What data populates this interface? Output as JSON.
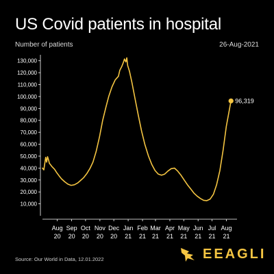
{
  "header": {
    "title": "US Covid patients in hospital",
    "subtitle": "Number of patients",
    "date": "26-Aug-2021"
  },
  "footer": {
    "source": "Source: Our World in Data, 12.01.2022",
    "brand": "EEAGLI"
  },
  "colors": {
    "background": "#000000",
    "line": "#f5c542",
    "text": "#ffffff",
    "brand": "#f5c542"
  },
  "chart_data": {
    "type": "line",
    "title": "US Covid patients in hospital",
    "ylabel": "Number of patients",
    "xlabel": "",
    "ylim": [
      0,
      135000
    ],
    "grid": false,
    "legend": "none",
    "y_ticks": [
      "10,000",
      "20,000",
      "30,000",
      "40,000",
      "50,000",
      "60,000",
      "70,000",
      "80,000",
      "90,000",
      "100,000",
      "110,000",
      "120,000",
      "130,000"
    ],
    "x_ticks": [
      {
        "month": "Aug",
        "year": "20",
        "date": "2020-08-01"
      },
      {
        "month": "Sep",
        "year": "20",
        "date": "2020-09-01"
      },
      {
        "month": "Oct",
        "year": "20",
        "date": "2020-10-01"
      },
      {
        "month": "Nov",
        "year": "20",
        "date": "2020-11-01"
      },
      {
        "month": "Dec",
        "year": "20",
        "date": "2020-12-01"
      },
      {
        "month": "Jan",
        "year": "21",
        "date": "2021-01-01"
      },
      {
        "month": "Feb",
        "year": "21",
        "date": "2021-02-01"
      },
      {
        "month": "Mar",
        "year": "21",
        "date": "2021-03-01"
      },
      {
        "month": "Apr",
        "year": "21",
        "date": "2021-04-01"
      },
      {
        "month": "May",
        "year": "21",
        "date": "2021-05-01"
      },
      {
        "month": "Jun",
        "year": "21",
        "date": "2021-06-01"
      },
      {
        "month": "Jul",
        "year": "21",
        "date": "2021-07-01"
      },
      {
        "month": "Aug",
        "year": "21",
        "date": "2021-08-01"
      }
    ],
    "series": [
      {
        "points": [
          [
            "2020-07-15",
            40000
          ],
          [
            "2020-07-18",
            38500
          ],
          [
            "2020-07-20",
            44000
          ],
          [
            "2020-07-22",
            49000
          ],
          [
            "2020-07-24",
            45000
          ],
          [
            "2020-07-26",
            49500
          ],
          [
            "2020-07-28",
            47000
          ],
          [
            "2020-07-30",
            44000
          ],
          [
            "2020-08-05",
            41000
          ],
          [
            "2020-08-10",
            39000
          ],
          [
            "2020-08-15",
            36000
          ],
          [
            "2020-08-20",
            33500
          ],
          [
            "2020-08-25",
            31000
          ],
          [
            "2020-09-01",
            28500
          ],
          [
            "2020-09-08",
            26500
          ],
          [
            "2020-09-15",
            25500
          ],
          [
            "2020-09-22",
            26000
          ],
          [
            "2020-09-29",
            27500
          ],
          [
            "2020-10-05",
            29500
          ],
          [
            "2020-10-12",
            32000
          ],
          [
            "2020-10-19",
            35500
          ],
          [
            "2020-10-26",
            40000
          ],
          [
            "2020-11-01",
            45000
          ],
          [
            "2020-11-08",
            54000
          ],
          [
            "2020-11-15",
            66000
          ],
          [
            "2020-11-22",
            80000
          ],
          [
            "2020-11-29",
            91000
          ],
          [
            "2020-12-05",
            100000
          ],
          [
            "2020-12-12",
            108000
          ],
          [
            "2020-12-19",
            114000
          ],
          [
            "2020-12-26",
            117000
          ],
          [
            "2020-12-29",
            122000
          ],
          [
            "2021-01-02",
            125000
          ],
          [
            "2021-01-05",
            128000
          ],
          [
            "2021-01-08",
            131500
          ],
          [
            "2021-01-11",
            129000
          ],
          [
            "2021-01-13",
            132500
          ],
          [
            "2021-01-15",
            126000
          ],
          [
            "2021-01-19",
            121000
          ],
          [
            "2021-01-24",
            112000
          ],
          [
            "2021-01-31",
            98000
          ],
          [
            "2021-02-07",
            84000
          ],
          [
            "2021-02-14",
            71000
          ],
          [
            "2021-02-21",
            60000
          ],
          [
            "2021-03-01",
            50000
          ],
          [
            "2021-03-08",
            43000
          ],
          [
            "2021-03-15",
            38000
          ],
          [
            "2021-03-22",
            35000
          ],
          [
            "2021-03-29",
            34000
          ],
          [
            "2021-04-05",
            35000
          ],
          [
            "2021-04-12",
            37500
          ],
          [
            "2021-04-19",
            39500
          ],
          [
            "2021-04-26",
            40000
          ],
          [
            "2021-05-03",
            37500
          ],
          [
            "2021-05-10",
            34000
          ],
          [
            "2021-05-17",
            30000
          ],
          [
            "2021-05-24",
            26000
          ],
          [
            "2021-05-31",
            22500
          ],
          [
            "2021-06-07",
            19000
          ],
          [
            "2021-06-14",
            16500
          ],
          [
            "2021-06-21",
            14500
          ],
          [
            "2021-06-28",
            13000
          ],
          [
            "2021-07-05",
            12700
          ],
          [
            "2021-07-12",
            14000
          ],
          [
            "2021-07-19",
            18000
          ],
          [
            "2021-07-26",
            26000
          ],
          [
            "2021-08-02",
            38000
          ],
          [
            "2021-08-09",
            55000
          ],
          [
            "2021-08-16",
            75000
          ],
          [
            "2021-08-23",
            90000
          ],
          [
            "2021-08-26",
            96319
          ]
        ]
      }
    ],
    "annotations": [
      {
        "date": "2021-08-26",
        "value": 96319,
        "label": "96,319"
      }
    ]
  }
}
